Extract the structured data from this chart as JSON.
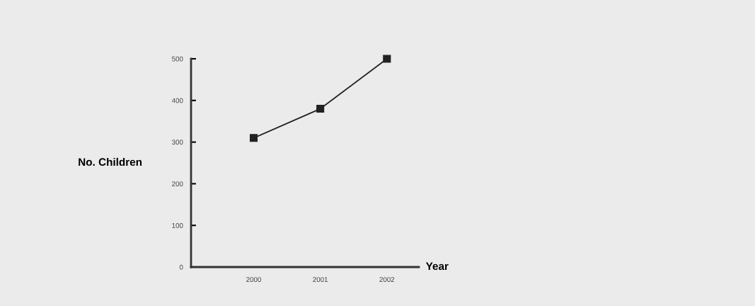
{
  "chart_data": {
    "type": "line",
    "xlabel": "Year",
    "ylabel": "No. Children",
    "categories": [
      "2000",
      "2001",
      "2002"
    ],
    "series": [
      {
        "color": "#222222",
        "values": [
          310,
          380,
          500
        ]
      }
    ],
    "ylim": [
      0,
      500
    ],
    "yticks": [
      0,
      100,
      200,
      300,
      400,
      500
    ],
    "marker": "square",
    "line_style": "solid",
    "grid": false,
    "legend": false
  }
}
